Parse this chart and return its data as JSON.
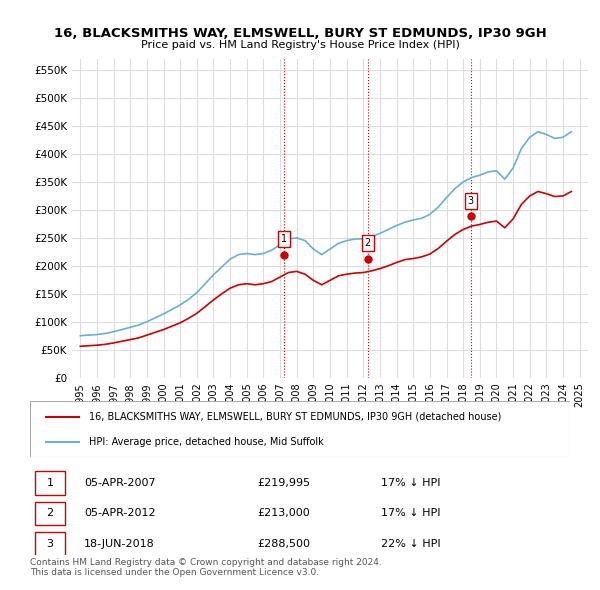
{
  "title": "16, BLACKSMITHS WAY, ELMSWELL, BURY ST EDMUNDS, IP30 9GH",
  "subtitle": "Price paid vs. HM Land Registry's House Price Index (HPI)",
  "legend_property": "16, BLACKSMITHS WAY, ELMSWELL, BURY ST EDMUNDS, IP30 9GH (detached house)",
  "legend_hpi": "HPI: Average price, detached house, Mid Suffolk",
  "footer": "Contains HM Land Registry data © Crown copyright and database right 2024.\nThis data is licensed under the Open Government Licence v3.0.",
  "sales": [
    {
      "num": 1,
      "date": "05-APR-2007",
      "price": 219995,
      "pct": "17% ↓ HPI"
    },
    {
      "num": 2,
      "date": "05-APR-2012",
      "price": 213000,
      "pct": "17% ↓ HPI"
    },
    {
      "num": 3,
      "date": "18-JUN-2018",
      "price": 288500,
      "pct": "22% ↓ HPI"
    }
  ],
  "sale_years": [
    2007.26,
    2012.26,
    2018.46
  ],
  "sale_prices": [
    219995,
    213000,
    288500
  ],
  "hpi_data": {
    "years": [
      1995,
      1995.5,
      1996,
      1996.5,
      1997,
      1997.5,
      1998,
      1998.5,
      1999,
      1999.5,
      2000,
      2000.5,
      2001,
      2001.5,
      2002,
      2002.5,
      2003,
      2003.5,
      2004,
      2004.5,
      2005,
      2005.5,
      2006,
      2006.5,
      2007,
      2007.5,
      2008,
      2008.5,
      2009,
      2009.5,
      2010,
      2010.5,
      2011,
      2011.5,
      2012,
      2012.5,
      2013,
      2013.5,
      2014,
      2014.5,
      2015,
      2015.5,
      2016,
      2016.5,
      2017,
      2017.5,
      2018,
      2018.5,
      2019,
      2019.5,
      2020,
      2020.5,
      2021,
      2021.5,
      2022,
      2022.5,
      2023,
      2023.5,
      2024,
      2024.5
    ],
    "values": [
      75000,
      76000,
      77000,
      79000,
      82000,
      86000,
      90000,
      94000,
      100000,
      107000,
      114000,
      122000,
      130000,
      140000,
      152000,
      168000,
      184000,
      198000,
      212000,
      220000,
      222000,
      220000,
      222000,
      228000,
      238000,
      248000,
      250000,
      245000,
      230000,
      220000,
      230000,
      240000,
      245000,
      248000,
      248000,
      252000,
      258000,
      265000,
      272000,
      278000,
      282000,
      285000,
      292000,
      305000,
      322000,
      338000,
      350000,
      358000,
      362000,
      368000,
      370000,
      355000,
      375000,
      410000,
      430000,
      440000,
      435000,
      428000,
      430000,
      440000
    ]
  },
  "property_hpi_data": {
    "years": [
      1995,
      1995.5,
      1996,
      1996.5,
      1997,
      1997.5,
      1998,
      1998.5,
      1999,
      1999.5,
      2000,
      2000.5,
      2001,
      2001.5,
      2002,
      2002.5,
      2003,
      2003.5,
      2004,
      2004.5,
      2005,
      2005.5,
      2006,
      2006.5,
      2007,
      2007.5,
      2008,
      2008.5,
      2009,
      2009.5,
      2010,
      2010.5,
      2011,
      2011.5,
      2012,
      2012.5,
      2013,
      2013.5,
      2014,
      2014.5,
      2015,
      2015.5,
      2016,
      2016.5,
      2017,
      2017.5,
      2018,
      2018.5,
      2019,
      2019.5,
      2020,
      2020.5,
      2021,
      2021.5,
      2022,
      2022.5,
      2023,
      2023.5,
      2024,
      2024.5
    ],
    "values": [
      56000,
      57000,
      58000,
      59500,
      62000,
      65000,
      68000,
      71000,
      76000,
      81000,
      86000,
      92000,
      98000,
      106000,
      115000,
      127000,
      139000,
      150000,
      160000,
      166000,
      168000,
      166000,
      168000,
      172000,
      180000,
      188000,
      190000,
      185000,
      174000,
      166000,
      174000,
      182000,
      185000,
      187000,
      188000,
      191000,
      195000,
      200000,
      206000,
      211000,
      213000,
      216000,
      221000,
      231000,
      244000,
      256000,
      265000,
      271000,
      274000,
      278000,
      280000,
      268000,
      284000,
      310000,
      325000,
      333000,
      329000,
      324000,
      325000,
      333000
    ]
  },
  "ylim": [
    0,
    570000
  ],
  "yticks": [
    0,
    50000,
    100000,
    150000,
    200000,
    250000,
    300000,
    350000,
    400000,
    450000,
    500000,
    550000
  ],
  "ytick_labels": [
    "£0",
    "£50K",
    "£100K",
    "£150K",
    "£200K",
    "£250K",
    "£300K",
    "£350K",
    "£400K",
    "£450K",
    "£500K",
    "£550K"
  ],
  "xlim": [
    1994.5,
    2025.5
  ],
  "xticks": [
    1995,
    1996,
    1997,
    1998,
    1999,
    2000,
    2001,
    2002,
    2003,
    2004,
    2005,
    2006,
    2007,
    2008,
    2009,
    2010,
    2011,
    2012,
    2013,
    2014,
    2015,
    2016,
    2017,
    2018,
    2019,
    2020,
    2021,
    2022,
    2023,
    2024,
    2025
  ],
  "hpi_color": "#6baed6",
  "property_color": "#cc0000",
  "sale_marker_color": "#cc0000",
  "grid_color": "#dddddd",
  "background_color": "#ffffff"
}
